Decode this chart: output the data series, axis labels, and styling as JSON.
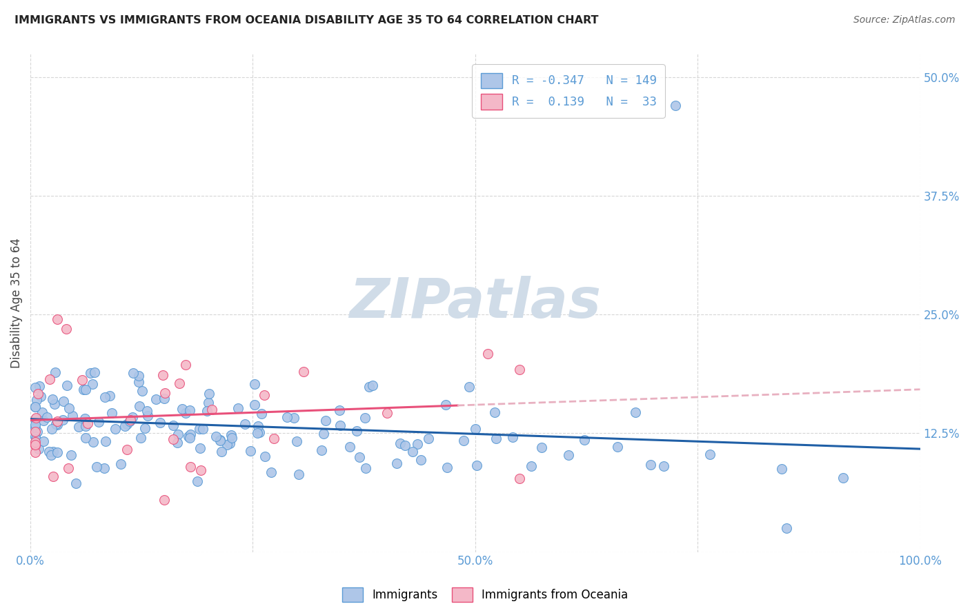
{
  "title": "IMMIGRANTS VS IMMIGRANTS FROM OCEANIA DISABILITY AGE 35 TO 64 CORRELATION CHART",
  "source": "Source: ZipAtlas.com",
  "ylabel": "Disability Age 35 to 64",
  "xlim": [
    0.0,
    1.0
  ],
  "ylim": [
    0.0,
    0.525
  ],
  "yticks": [
    0.0,
    0.125,
    0.25,
    0.375,
    0.5
  ],
  "yticklabels": [
    "",
    "12.5%",
    "25.0%",
    "37.5%",
    "50.0%"
  ],
  "xticks": [
    0.0,
    0.25,
    0.5,
    0.75,
    1.0
  ],
  "xticklabels": [
    "0.0%",
    "",
    "50.0%",
    "",
    "100.0%"
  ],
  "blue_face_color": "#aec6e8",
  "blue_edge_color": "#5b9bd5",
  "pink_face_color": "#f4b8c8",
  "pink_edge_color": "#e8507a",
  "blue_line_color": "#1f5fa6",
  "pink_line_color": "#e8507a",
  "pink_dash_color": "#e8b0c0",
  "watermark": "ZIPatlas",
  "watermark_color": "#d0dce8",
  "background_color": "#ffffff",
  "grid_color": "#cccccc",
  "tick_color": "#5b9bd5",
  "title_color": "#222222",
  "source_color": "#666666",
  "legend_text_color": "#5b9bd5",
  "R_blue": -0.347,
  "N_blue": 149,
  "R_pink": 0.139,
  "N_pink": 33,
  "legend_label_blue": "R = -0.347   N = 149",
  "legend_label_pink": "R =  0.139   N =  33",
  "bottom_label_blue": "Immigrants",
  "bottom_label_pink": "Immigrants from Oceania"
}
